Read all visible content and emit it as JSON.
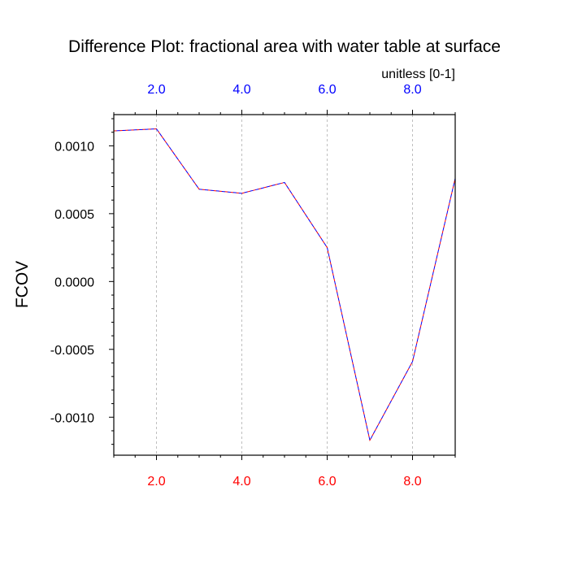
{
  "chart_data": {
    "type": "line",
    "title": "Difference Plot: fractional area with water table at surface",
    "units": "unitless [0-1]",
    "ylabel": "FCOV",
    "xlabel": "",
    "xlim": [
      1,
      9
    ],
    "ylim": [
      -0.00128,
      0.00123
    ],
    "x_ticks": [
      "2.0",
      "4.0",
      "6.0",
      "8.0"
    ],
    "x_tick_values": [
      2,
      4,
      6,
      8
    ],
    "y_ticks": [
      "0.0010",
      "0.0005",
      "0.0000",
      "-0.0005",
      "-0.0010"
    ],
    "y_tick_values": [
      0.001,
      0.0005,
      0.0,
      -0.0005,
      -0.001
    ],
    "grid": "vertical-dashed",
    "colors": {
      "top_axis_labels": "#0000ff",
      "bottom_axis_labels": "#ff0000",
      "series_a": "#ff0000",
      "series_b": "#0000ff",
      "grid": "#b0b0b0",
      "frame": "#000000"
    },
    "series": [
      {
        "x": [
          1,
          2,
          3,
          4,
          5,
          6,
          7,
          8,
          9
        ],
        "values": [
          0.00111,
          0.001125,
          0.00068,
          0.00065,
          0.00073,
          0.00025,
          -0.00117,
          -0.00059,
          0.00076
        ]
      },
      {
        "x": [
          1,
          2,
          3,
          4,
          5,
          6,
          7,
          8,
          9
        ],
        "values": [
          0.00111,
          0.001125,
          0.00068,
          0.00065,
          0.00073,
          0.00025,
          -0.00117,
          -0.00059,
          0.00076
        ]
      }
    ]
  }
}
